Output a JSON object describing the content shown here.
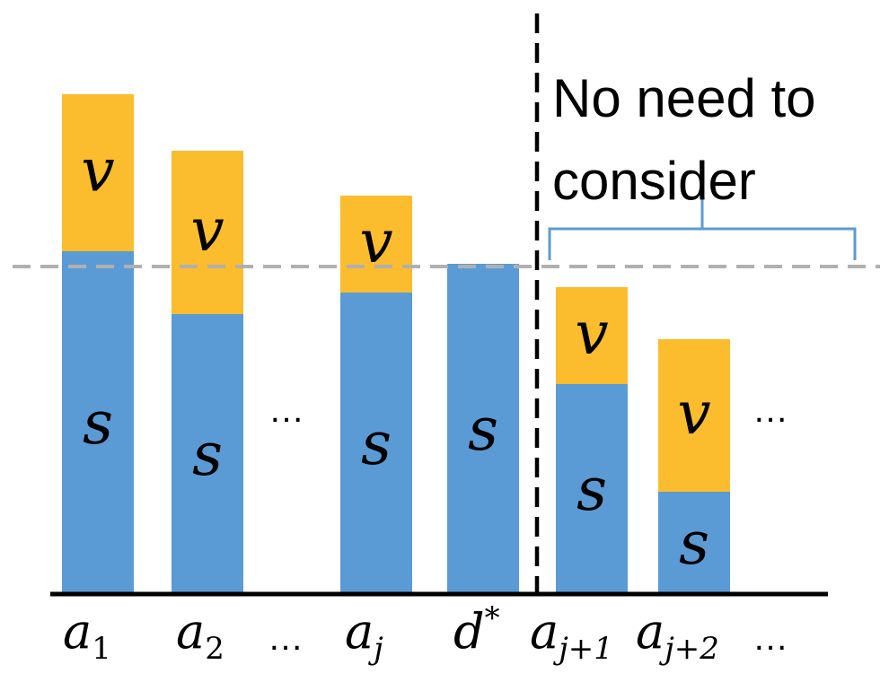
{
  "colors": {
    "stack_bottom": "#5b9bd5",
    "stack_top": "#fbbc2e",
    "threshold_line": "#b0b0b0",
    "separator_line": "#000000",
    "brace": "#5b9bd5",
    "baseline": "#000000"
  },
  "bars": [
    {
      "label_base": "a",
      "label_sub": "1",
      "label_sup": "",
      "bottom": 380,
      "top": 175,
      "bottom_text": "s",
      "top_text": "v"
    },
    {
      "label_base": "a",
      "label_sub": "2",
      "label_sup": "",
      "bottom": 310,
      "top": 182,
      "bottom_text": "s",
      "top_text": "v"
    },
    {
      "label_base": "a",
      "label_sub": "j",
      "label_sup": "",
      "bottom": 334,
      "top": 108,
      "bottom_text": "s",
      "top_text": "v"
    },
    {
      "label_base": "d",
      "label_sub": "",
      "label_sup": "*",
      "bottom": 366,
      "top": 0,
      "bottom_text": "s",
      "top_text": ""
    },
    {
      "label_base": "a",
      "label_sub": "j+1",
      "label_sup": "",
      "bottom": 232,
      "top": 108,
      "bottom_text": "s",
      "top_text": "v"
    },
    {
      "label_base": "a",
      "label_sub": "j+2",
      "label_sup": "",
      "bottom": 112,
      "top": 170,
      "bottom_text": "s",
      "top_text": "v"
    }
  ],
  "threshold": 366,
  "ellipsis": "…",
  "annotation": {
    "line1": "No need to",
    "line2": "consider"
  }
}
